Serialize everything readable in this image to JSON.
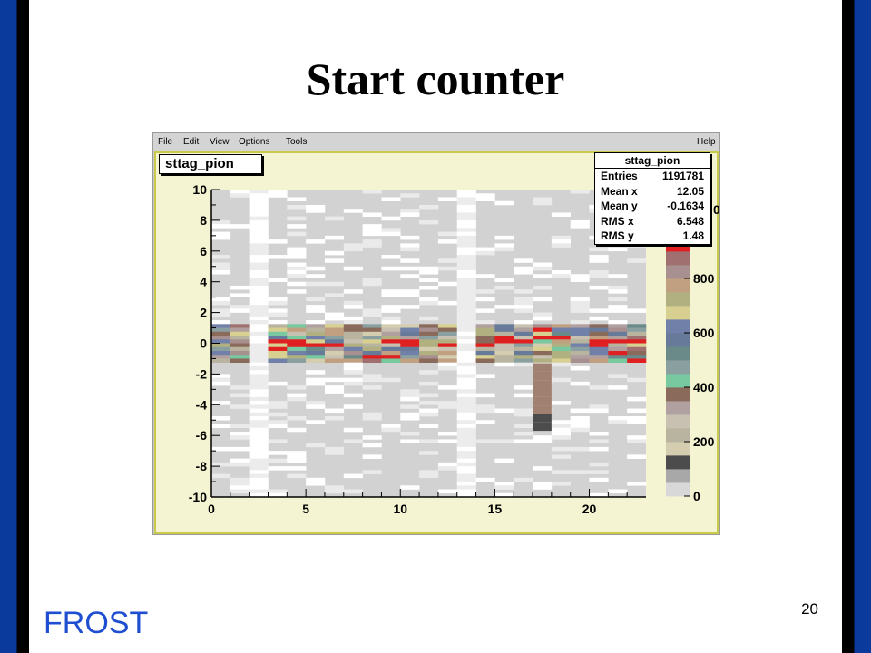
{
  "slide": {
    "title": "Start counter",
    "footer_label": "FROST",
    "page_number": "20"
  },
  "colors": {
    "frame_blue": "#0a3a9c",
    "footer_blue": "#1f4fd0",
    "canvas_bg": "#f4f4d2",
    "plot_bg": "#d2d2d2"
  },
  "menubar": {
    "items": [
      "File",
      "Edit",
      "View",
      "Options",
      "Tools"
    ],
    "help": "Help"
  },
  "histogram": {
    "title": "sttag_pion",
    "stats": {
      "title": "sttag_pion",
      "rows": [
        {
          "label": "Entries",
          "value": "1191781"
        },
        {
          "label": "Mean x",
          "value": "12.05"
        },
        {
          "label": "Mean y",
          "value": "-0.1634"
        },
        {
          "label": "RMS x",
          "value": "6.548"
        },
        {
          "label": "RMS y",
          "value": "1.48"
        }
      ]
    }
  },
  "chart_data": {
    "type": "heatmap",
    "title": "sttag_pion",
    "x_ticks": [
      "0",
      "5",
      "10",
      "15",
      "20"
    ],
    "y_ticks": [
      "10",
      "8",
      "6",
      "4",
      "2",
      "0",
      "-2",
      "-4",
      "-6",
      "-8",
      "-10"
    ],
    "xlim": [
      0,
      23
    ],
    "ylim": [
      -10,
      10
    ],
    "z_ticks": [
      "0",
      "200",
      "400",
      "600",
      "800"
    ],
    "z_palette": [
      "#d8d8d8",
      "#a8a8a8",
      "#4c4c4c",
      "#d4cdb0",
      "#b8b4a0",
      "#c8c0b0",
      "#b0a0a0",
      "#8a6a5a",
      "#78c8a0",
      "#8aa0a0",
      "#6a8a8a",
      "#687a9a",
      "#7080a8",
      "#d8d090",
      "#b0b080",
      "#c0a080",
      "#a89090",
      "#a07070",
      "#e02020"
    ],
    "z_palette_top_label": "0",
    "empty_channels": [
      2,
      13
    ],
    "band_center_y": 0,
    "band_halfwidth_y": 1.2
  }
}
